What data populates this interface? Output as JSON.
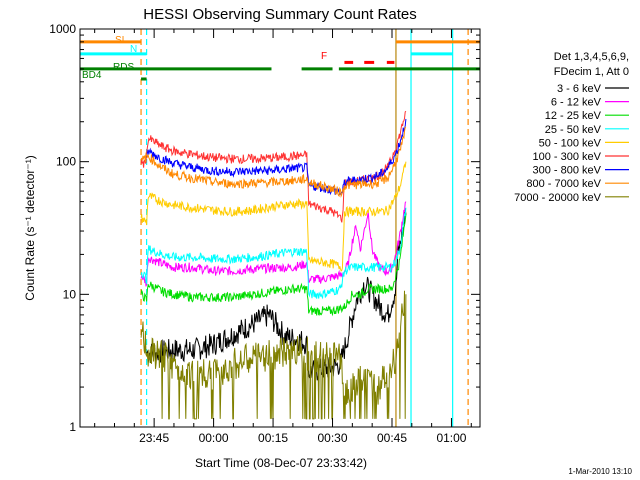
{
  "chart_data": {
    "type": "line",
    "title": "HESSI Observing Summary Count Rates",
    "xlabel": "Start Time (08-Dec-07 23:33:42)",
    "ylabel": "Count Rate (s⁻¹ detector⁻¹)",
    "yscale": "log",
    "ylim": [
      1,
      1000
    ],
    "xlim_minutes": [
      -33.7,
      67.2
    ],
    "x_ticks": [
      "23:45",
      "00:00",
      "00:15",
      "00:30",
      "00:45",
      "01:00"
    ],
    "y_ticks": [
      "1",
      "10",
      "100",
      "1000"
    ],
    "legend_header": [
      "Det 1,3,4,5,6,9,",
      "FDecim 1, Att 0"
    ],
    "legend_position": "right",
    "timestamp": "1-Mar-2010 13:10",
    "series": [
      {
        "name": "3 - 6 keV",
        "color": "#000000",
        "x": [
          -16.9,
          -16.5,
          -13,
          -10,
          -5,
          0,
          5,
          10,
          14,
          18,
          22,
          23.5,
          24,
          27,
          30,
          32,
          34,
          36,
          38,
          39,
          40,
          42,
          44,
          45,
          46,
          46.5,
          47,
          48,
          48.5
        ],
        "y": [
          3.6,
          3.6,
          3.7,
          3.8,
          3.8,
          4.2,
          5,
          6,
          7,
          4.8,
          4.5,
          4.2,
          2.6,
          2.7,
          2.8,
          3,
          5,
          9,
          12,
          11,
          10,
          8,
          7,
          9,
          11,
          20,
          23,
          35,
          40
        ]
      },
      {
        "name": "6 - 12 keV",
        "color": "#ff00ff",
        "x": [
          -18.3,
          -17.5,
          -16.9,
          -16.5,
          -13,
          -10,
          -5,
          0,
          5,
          10,
          15,
          20,
          23.5,
          24,
          27,
          30,
          32.5,
          33,
          34,
          35,
          36,
          37,
          38,
          39,
          40,
          41,
          42,
          43,
          44,
          45,
          46,
          47,
          48,
          48.5
        ],
        "y": [
          14,
          13,
          12,
          19,
          17,
          16,
          16,
          15,
          15,
          15.5,
          15.8,
          16,
          17,
          13,
          13,
          13.5,
          14,
          15,
          17,
          25,
          33,
          22,
          30,
          42,
          22,
          18,
          16,
          15,
          15,
          16,
          20,
          28,
          42,
          50
        ]
      },
      {
        "name": "12 - 25 keV",
        "color": "#00dd00",
        "x": [
          -18.3,
          -17.5,
          -16.9,
          -16.5,
          -13,
          -10,
          -5,
          0,
          5,
          10,
          15,
          20,
          23.5,
          24,
          27,
          30,
          33,
          35,
          37,
          39,
          41,
          43,
          45,
          47,
          48.5
        ],
        "y": [
          10,
          9.5,
          9,
          12,
          10.5,
          10,
          9.5,
          9.5,
          9.5,
          10,
          10.5,
          11,
          11,
          7.5,
          7.5,
          7.5,
          8,
          10,
          10,
          11,
          11,
          11,
          11,
          18,
          40
        ]
      },
      {
        "name": "25 - 50 keV",
        "color": "#00ffff",
        "x": [
          -18.3,
          -17.5,
          -16.9,
          -16.5,
          -13,
          -10,
          -5,
          0,
          5,
          10,
          15,
          20,
          23.5,
          24,
          27,
          30,
          32,
          33,
          35,
          40,
          44,
          45,
          46,
          47,
          48,
          48.5
        ],
        "y": [
          15,
          14,
          13,
          22,
          20,
          19,
          19,
          18.5,
          18.5,
          19,
          20,
          21,
          21,
          10,
          10,
          10.5,
          11,
          15,
          16,
          16,
          16,
          16,
          18,
          22,
          35,
          45
        ]
      },
      {
        "name": "50 - 100 keV",
        "color": "#ffcc00",
        "x": [
          -18.3,
          -17.5,
          -16.9,
          -16.5,
          -13,
          -10,
          -5,
          0,
          5,
          10,
          15,
          20,
          23.5,
          24,
          27,
          30,
          32.5,
          33,
          35,
          40,
          42,
          44,
          46,
          47,
          48,
          48.5
        ],
        "y": [
          38,
          36,
          35,
          55,
          50,
          47,
          45,
          43,
          42,
          43,
          46,
          48,
          48,
          18,
          17.5,
          17,
          16,
          42,
          42,
          42,
          42,
          43,
          55,
          65,
          85,
          100
        ]
      },
      {
        "name": "100 - 300 keV",
        "color": "#ff3333",
        "x": [
          -18.3,
          -17.5,
          -16.9,
          -16.5,
          -13,
          -10,
          -5,
          0,
          5,
          10,
          15,
          20,
          23.5,
          24,
          27,
          30,
          32.5,
          33,
          35,
          40,
          42,
          44,
          46,
          47,
          48,
          48.5
        ],
        "y": [
          100,
          95,
          110,
          150,
          130,
          120,
          113,
          107,
          105,
          105,
          107,
          110,
          112,
          48,
          45,
          42,
          37,
          70,
          70,
          75,
          80,
          90,
          130,
          160,
          210,
          240
        ]
      },
      {
        "name": "300 - 800 keV",
        "color": "#0000ff",
        "x": [
          -16.9,
          -16.5,
          -13,
          -10,
          -5,
          0,
          5,
          10,
          15,
          20,
          23.5,
          24,
          27,
          30,
          32.5,
          33,
          35,
          40,
          42,
          44,
          46,
          47,
          48,
          48.5
        ],
        "y": [
          100,
          120,
          105,
          97,
          90,
          85,
          84,
          85,
          86,
          89,
          90,
          66,
          64,
          61,
          58,
          70,
          72,
          76,
          80,
          90,
          115,
          140,
          180,
          210
        ]
      },
      {
        "name": "800 - 7000 keV",
        "color": "#ff8800",
        "x": [
          -18.3,
          -17.5,
          -16.9,
          -16.5,
          -13,
          -10,
          -5,
          0,
          5,
          10,
          15,
          20,
          23.5,
          24,
          27,
          30,
          32.5,
          33,
          35,
          40,
          42,
          44,
          46,
          47,
          48,
          48.5
        ],
        "y": [
          100,
          105,
          108,
          110,
          90,
          80,
          75,
          70,
          68,
          69,
          70,
          72,
          74,
          70,
          66,
          62,
          58,
          66,
          67,
          68,
          70,
          76,
          100,
          120,
          150,
          180
        ]
      },
      {
        "name": "7000 - 20000 keV",
        "color": "#808000",
        "x": [
          -18.3,
          -17.5,
          -16.9,
          -16.5,
          -13,
          -10,
          -5,
          0,
          5,
          10,
          15,
          20,
          23.5,
          24,
          27,
          30,
          32,
          33,
          35,
          37,
          39,
          40,
          41,
          42,
          43,
          44,
          45,
          46,
          47,
          48,
          48.5
        ],
        "y": [
          5.5,
          4.5,
          4,
          3.6,
          3.5,
          2.8,
          2.5,
          2.5,
          3,
          3.3,
          3.5,
          3.7,
          3.9,
          3.3,
          3.4,
          3.4,
          3.5,
          1.8,
          2,
          2.2,
          2.6,
          2.3,
          1.8,
          2,
          2.3,
          2.5,
          3,
          3.4,
          5.5,
          8,
          10
        ]
      }
    ],
    "flags": {
      "SAA_label": "SI",
      "night_label": "N",
      "rds_label": "RDS",
      "bd4_label": "BD4",
      "flare_label": "F"
    },
    "flag_intervals": [
      {
        "flag": "SI",
        "color": "#ff8800",
        "y": 800,
        "x": [
          [
            -33.7,
            -18.3
          ],
          [
            46,
            67.2
          ]
        ]
      },
      {
        "flag": "N",
        "color": "#00ffff",
        "y": 650,
        "x": [
          [
            -33.7,
            -16.9
          ],
          [
            49.8,
            60.3
          ]
        ]
      },
      {
        "flag": "RDS",
        "color": "#008000",
        "y": 500,
        "x": [
          [
            -33.7,
            14.6
          ],
          [
            22.2,
            30
          ],
          [
            31.6,
            67.2
          ]
        ]
      },
      {
        "flag": "BD4",
        "color": "#008000",
        "y": 420,
        "x": [
          [
            -18.3,
            -16.9
          ]
        ]
      },
      {
        "flag": "F",
        "color": "#ff0000",
        "y": 560,
        "x": [
          [
            33,
            35.2
          ],
          [
            38,
            40.5
          ],
          [
            43.7,
            45.6
          ]
        ]
      }
    ],
    "vertical_markers": [
      {
        "x": -18.3,
        "color": "#ff8800",
        "style": "dashed"
      },
      {
        "x": -16.9,
        "color": "#00ffff",
        "style": "dashed"
      },
      {
        "x": 46,
        "color": "#b8860b",
        "style": "solid"
      },
      {
        "x": 49.8,
        "color": "#00ffff",
        "style": "solid"
      },
      {
        "x": 60.3,
        "color": "#00ffff",
        "style": "solid"
      },
      {
        "x": 64.2,
        "color": "#ff8800",
        "style": "dashed"
      }
    ]
  }
}
